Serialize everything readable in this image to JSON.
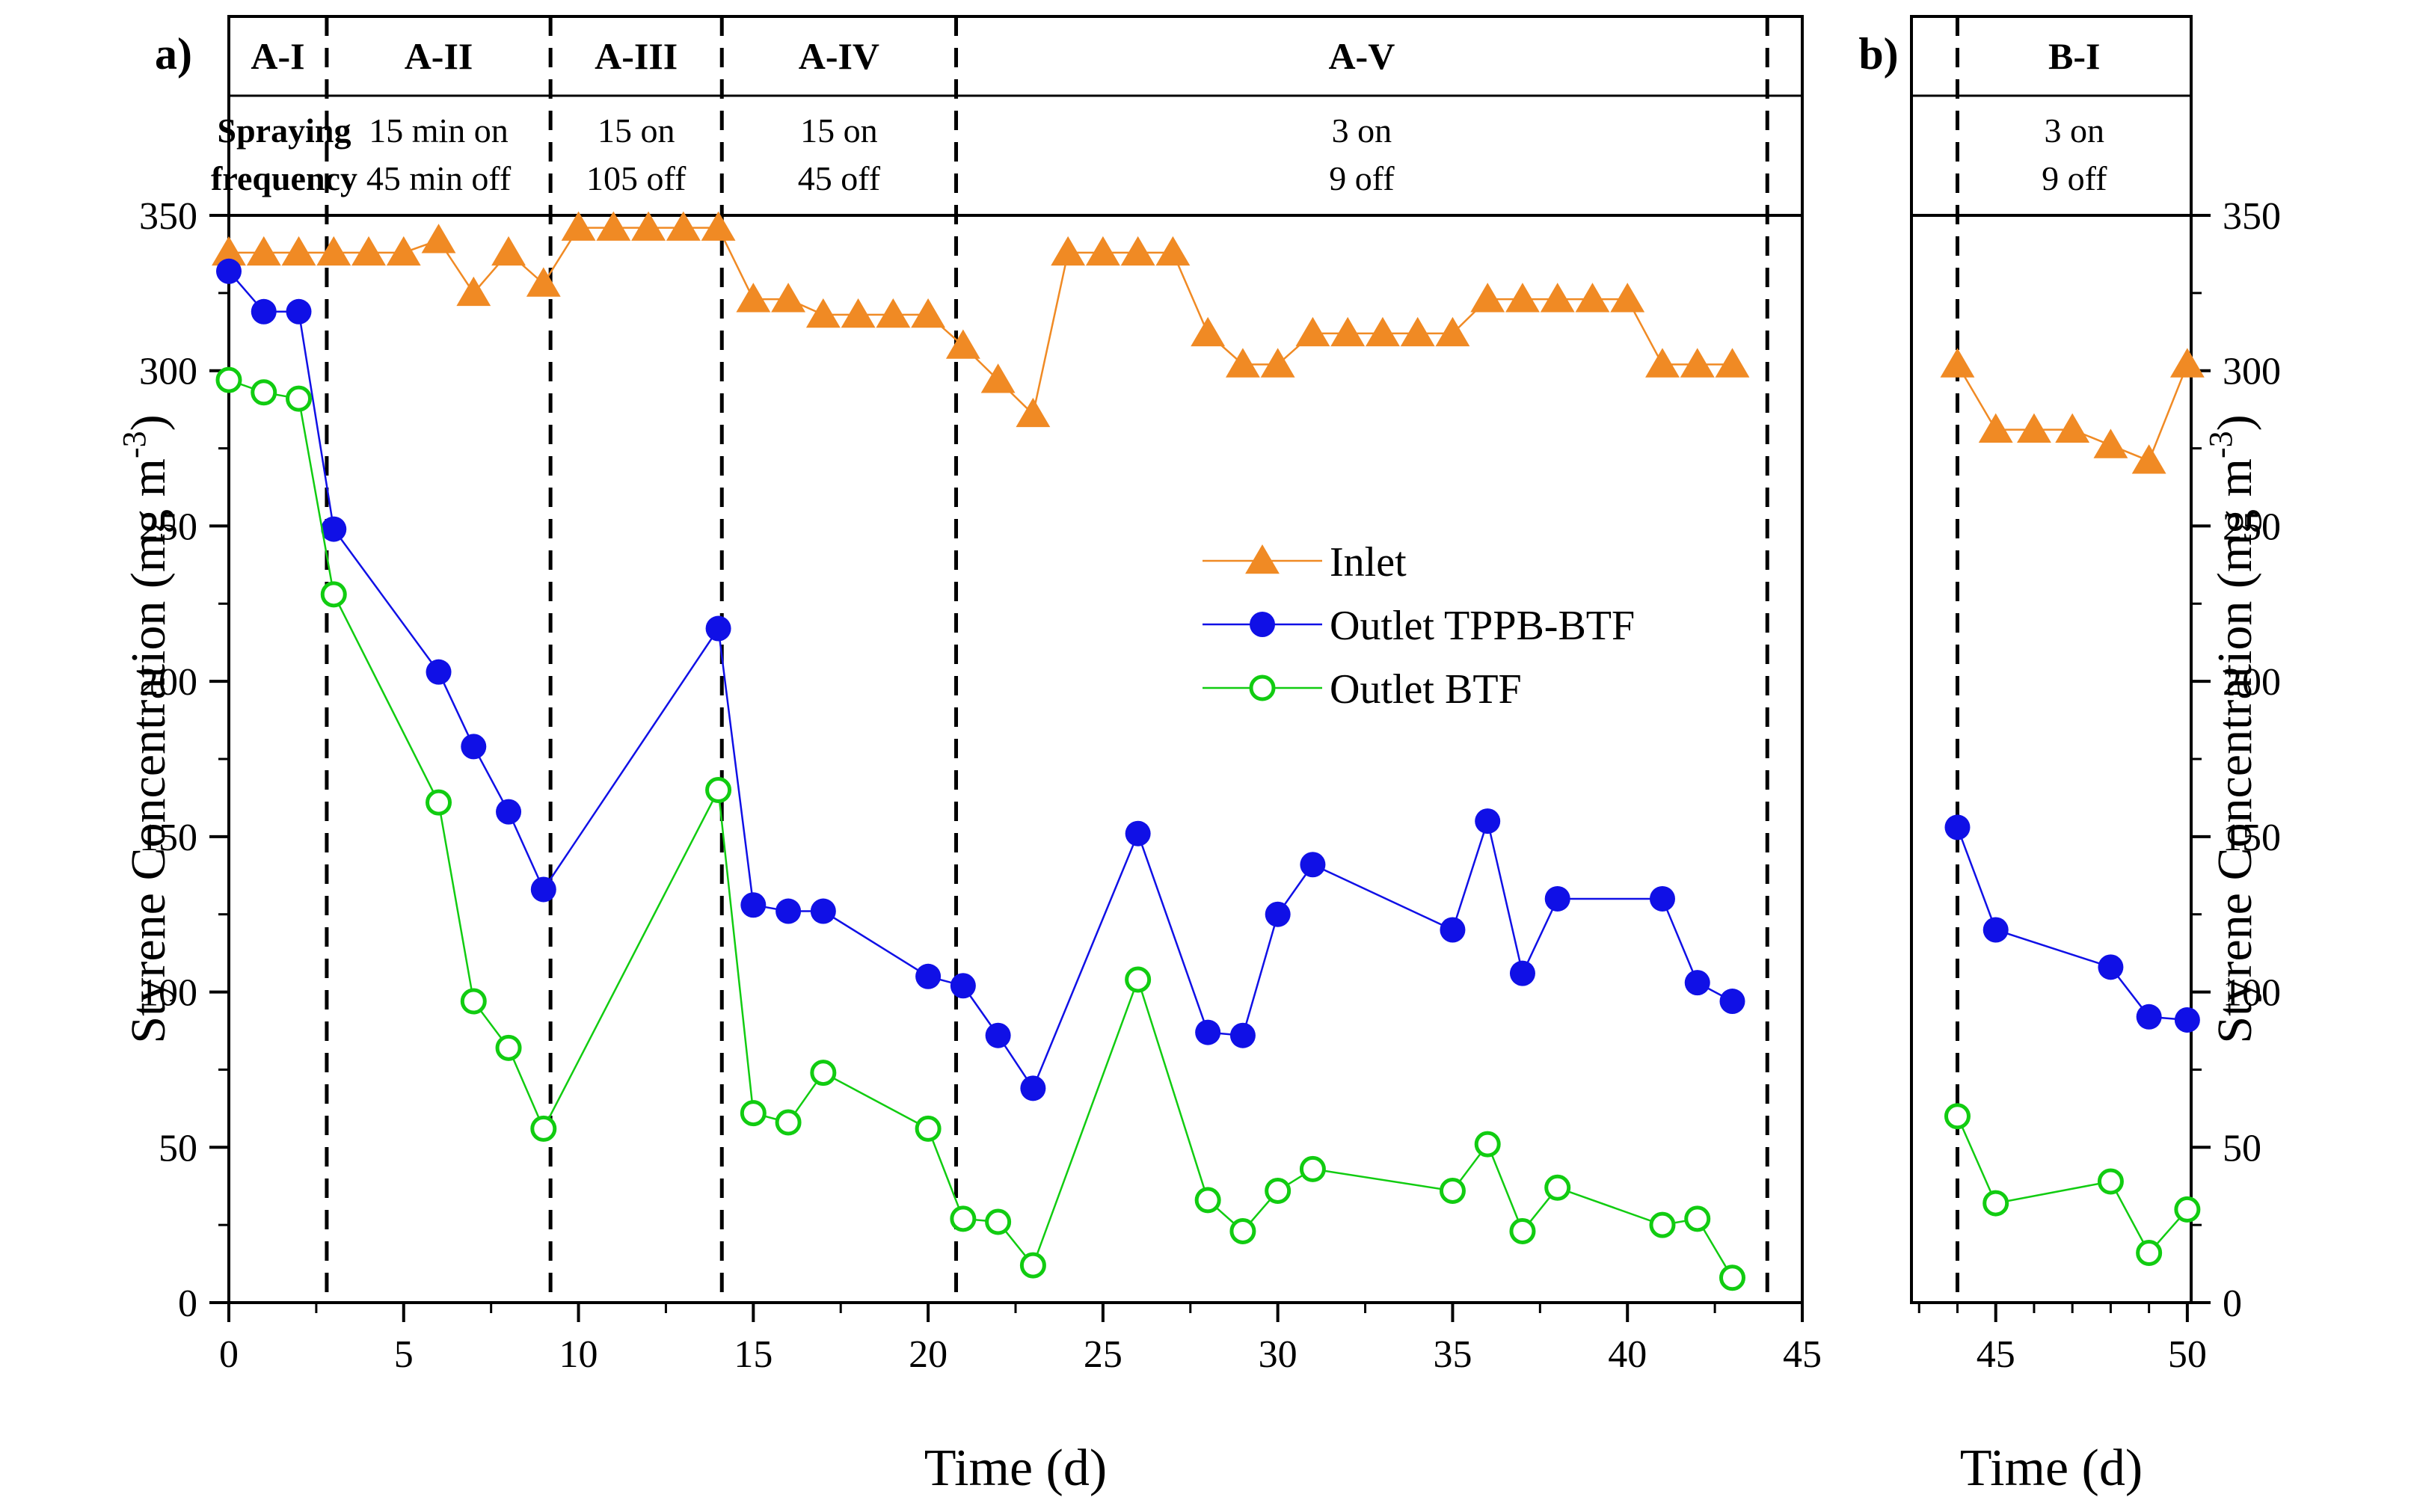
{
  "colors": {
    "inlet": "#f08a24",
    "outlet_tppb": "#1010e6",
    "outlet_btf": "#11cc11",
    "axis": "#000000"
  },
  "chart_data": [
    {
      "panel_label": "a)",
      "type": "scatter",
      "xlabel": "Time (d)",
      "ylabel": "Styrene Concentration (mg m",
      "ylabel_sup": "-3",
      "ylabel_close": ")",
      "xlim": [
        0,
        45
      ],
      "ylim": [
        0,
        350
      ],
      "xticks": [
        0,
        5,
        10,
        15,
        20,
        25,
        30,
        35,
        40,
        45
      ],
      "yticks": [
        0,
        50,
        100,
        150,
        200,
        250,
        300,
        350
      ],
      "spraying_label": [
        "Spraying",
        "frequency"
      ],
      "phases": [
        {
          "name": "A-I",
          "start": 0,
          "end": 2.8,
          "freq": []
        },
        {
          "name": "A-II",
          "start": 2.8,
          "end": 9.2,
          "freq": [
            "15 min on",
            "45 min off"
          ]
        },
        {
          "name": "A-III",
          "start": 9.2,
          "end": 14.1,
          "freq": [
            "15 on",
            "105 off"
          ]
        },
        {
          "name": "A-IV",
          "start": 14.1,
          "end": 20.8,
          "freq": [
            "15 on",
            "45 off"
          ]
        },
        {
          "name": "A-V",
          "start": 20.8,
          "end": 44,
          "freq": [
            "3 on",
            "9 off"
          ]
        }
      ],
      "dividers": [
        2.8,
        9.2,
        14.1,
        20.8,
        44
      ],
      "legend": [
        "Inlet",
        "Outlet TPPB-BTF",
        "Outlet BTF"
      ],
      "series": [
        {
          "name": "Inlet",
          "x": [
            0,
            1,
            2,
            3,
            4,
            5,
            6,
            7,
            8,
            9,
            10,
            11,
            12,
            13,
            14,
            15,
            16,
            17,
            18,
            19,
            20,
            21,
            22,
            23,
            24,
            25,
            26,
            27,
            28,
            29,
            30,
            31,
            32,
            33,
            34,
            35,
            36,
            37,
            38,
            39,
            40,
            41,
            42,
            43
          ],
          "y": [
            338,
            338,
            338,
            338,
            338,
            338,
            342,
            325,
            338,
            328,
            346,
            346,
            346,
            346,
            346,
            323,
            323,
            318,
            318,
            318,
            318,
            308,
            297,
            286,
            338,
            338,
            338,
            338,
            312,
            302,
            302,
            312,
            312,
            312,
            312,
            312,
            323,
            323,
            323,
            323,
            323,
            302,
            302,
            302
          ]
        },
        {
          "name": "Outlet TPPB-BTF",
          "x": [
            0,
            1,
            2,
            3,
            6,
            7,
            8,
            9,
            14,
            15,
            16,
            17,
            20,
            21,
            22,
            23,
            26,
            28,
            29,
            30,
            31,
            35,
            36,
            37,
            38,
            41,
            42,
            43
          ],
          "y": [
            332,
            319,
            319,
            249,
            203,
            179,
            158,
            133,
            217,
            128,
            126,
            126,
            105,
            102,
            86,
            69,
            151,
            87,
            86,
            125,
            141,
            120,
            155,
            106,
            130,
            130,
            103,
            97
          ]
        },
        {
          "name": "Outlet BTF",
          "x": [
            0,
            1,
            2,
            3,
            6,
            7,
            8,
            9,
            14,
            15,
            16,
            17,
            20,
            21,
            22,
            23,
            26,
            28,
            29,
            30,
            31,
            35,
            36,
            37,
            38,
            41,
            42,
            43
          ],
          "y": [
            297,
            293,
            291,
            228,
            161,
            97,
            82,
            56,
            165,
            61,
            58,
            74,
            56,
            27,
            26,
            12,
            104,
            33,
            23,
            36,
            43,
            36,
            51,
            23,
            37,
            25,
            27,
            8
          ]
        }
      ]
    },
    {
      "panel_label": "b)",
      "type": "scatter",
      "xlabel": "Time (d)",
      "ylabel": "Styrene Concentration (mg m",
      "ylabel_sup": "-3",
      "ylabel_close": ")",
      "xlim": [
        42.8,
        50.1
      ],
      "ylim": [
        0,
        350
      ],
      "xticks": [
        45,
        50
      ],
      "yticks": [
        0,
        50,
        100,
        150,
        200,
        250,
        300,
        350
      ],
      "phases": [
        {
          "name": "B-I",
          "start": 44,
          "end": 50.1,
          "freq": [
            "3 on",
            "9 off"
          ]
        }
      ],
      "dividers": [
        44
      ],
      "series": [
        {
          "name": "Inlet",
          "x": [
            44,
            45,
            46,
            47,
            48,
            49,
            50
          ],
          "y": [
            302,
            281,
            281,
            281,
            276,
            271,
            302
          ]
        },
        {
          "name": "Outlet TPPB-BTF",
          "x": [
            44,
            45,
            48,
            49,
            50
          ],
          "y": [
            153,
            120,
            108,
            92,
            91
          ]
        },
        {
          "name": "Outlet BTF",
          "x": [
            44,
            45,
            48,
            49,
            50
          ],
          "y": [
            60,
            32,
            39,
            16,
            30
          ]
        }
      ]
    }
  ]
}
